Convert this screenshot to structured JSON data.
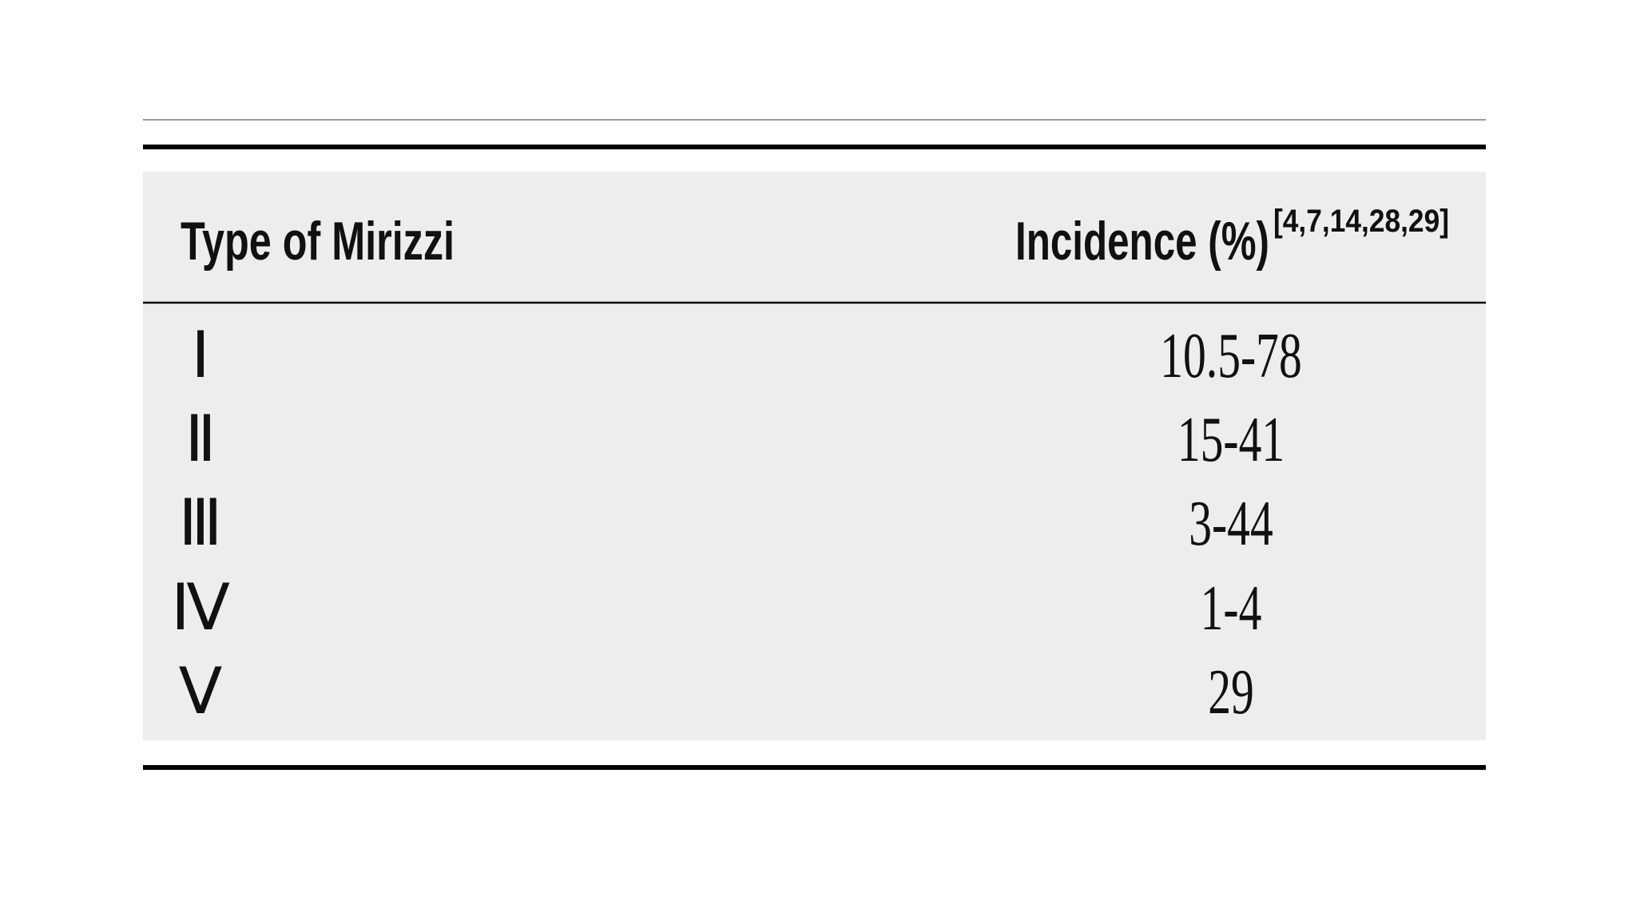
{
  "table": {
    "header": [
      "Type of Mirizzi",
      "Incidence (%)"
    ],
    "header_superscript": "[4,7,14,28,29]",
    "rows": [
      [
        "Ⅰ",
        "10.5-78"
      ],
      [
        "Ⅱ",
        "15-41"
      ],
      [
        "Ⅲ",
        "3-44"
      ],
      [
        "Ⅳ",
        "1-4"
      ],
      [
        "Ⅴ",
        "29"
      ]
    ]
  }
}
